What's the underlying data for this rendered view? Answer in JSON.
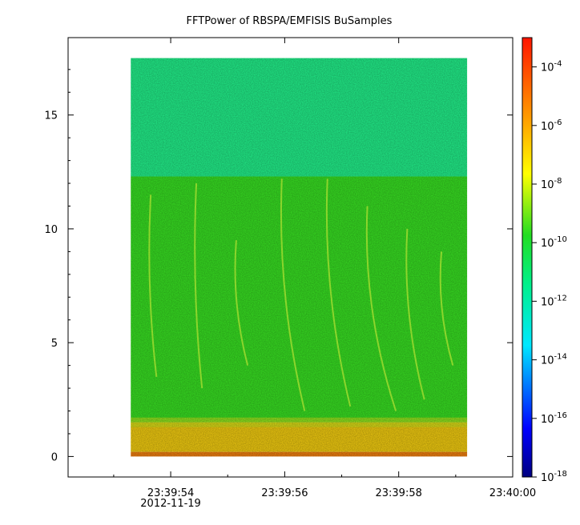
{
  "chart_data": {
    "type": "heatmap",
    "title": "FFTPower of RBSPA/EMFISIS  BuSamples",
    "xlabel": "",
    "ylabel": "",
    "x_ticks": [
      {
        "value": "23:39:54",
        "sublabel": "2012-11-19"
      },
      {
        "value": "23:39:56",
        "sublabel": ""
      },
      {
        "value": "23:39:58",
        "sublabel": ""
      },
      {
        "value": "23:40:00",
        "sublabel": ""
      }
    ],
    "x_range_seconds": [
      52.2,
      60.0
    ],
    "data_x_range_seconds": [
      53.3,
      59.2
    ],
    "y_ticks": [
      0,
      5,
      10,
      15
    ],
    "y_range": [
      -0.9,
      18.4
    ],
    "data_y_range": [
      0,
      17.5
    ],
    "colorbar": {
      "scale": "log",
      "range": [
        1e-18,
        0.001
      ],
      "ticks": [
        {
          "base": "10",
          "exp": "-4"
        },
        {
          "base": "10",
          "exp": "-6"
        },
        {
          "base": "10",
          "exp": "-8"
        },
        {
          "base": "10",
          "exp": "-10"
        },
        {
          "base": "10",
          "exp": "-12"
        },
        {
          "base": "10",
          "exp": "-14"
        },
        {
          "base": "10",
          "exp": "-16"
        },
        {
          "base": "10",
          "exp": "-18"
        }
      ],
      "colormap": "rainbow (blue to red)"
    },
    "bands": [
      {
        "y_from": 12.3,
        "y_to": 17.5,
        "log_power": -11.6,
        "description_color": "#22f08a"
      },
      {
        "y_from": 1.5,
        "y_to": 12.3,
        "log_power": -9.7,
        "description_color": "#38e022"
      },
      {
        "y_from": 0.2,
        "y_to": 1.5,
        "log_power": -7.6,
        "description_color": "#f2cc10"
      },
      {
        "y_from": 0.0,
        "y_to": 0.2,
        "log_power": -6.5,
        "description_color": "#f08010"
      }
    ],
    "grid": false,
    "legend": "colorbar-right"
  }
}
